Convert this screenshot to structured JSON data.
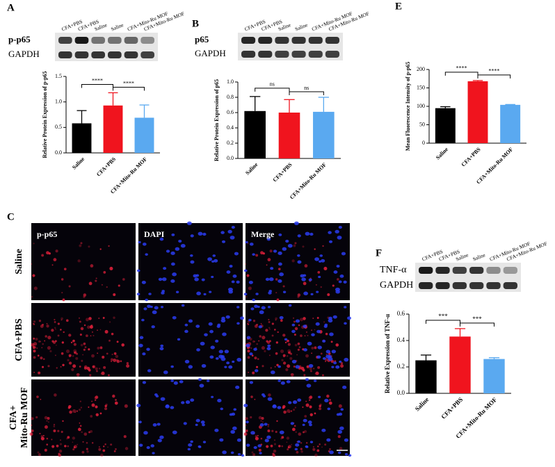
{
  "chart_data": [
    {
      "type": "bar",
      "panel": "A",
      "ylabel": "Relative Protein Expression of p-p65",
      "categories": [
        "Saline",
        "CFA+PBS",
        "CFA+Mito-Ru MOF"
      ],
      "values": [
        0.58,
        0.93,
        0.69
      ],
      "errors": [
        0.25,
        0.25,
        0.25
      ],
      "colors": [
        "#000000",
        "#f0141e",
        "#5aa9f0"
      ],
      "ylim": [
        0,
        1.5
      ],
      "yticks": [
        {
          "value": 0,
          "label": "0.0"
        },
        {
          "value": 0.5,
          "label": "0.5"
        },
        {
          "value": 1,
          "label": "1.0"
        },
        {
          "value": 1.5,
          "label": "1.5"
        }
      ],
      "annotations": [
        "****",
        "****"
      ]
    },
    {
      "type": "bar",
      "panel": "B",
      "ylabel": "Relative Protein Expression of p65",
      "categories": [
        "Saline",
        "CFA+PBS",
        "CFA+Mito-Ru MOF"
      ],
      "values": [
        0.62,
        0.6,
        0.61
      ],
      "errors": [
        0.19,
        0.17,
        0.19
      ],
      "colors": [
        "#000000",
        "#f0141e",
        "#5aa9f0"
      ],
      "ylim": [
        0,
        1
      ],
      "yticks": [
        {
          "value": 0,
          "label": "0.0"
        },
        {
          "value": 0.2,
          "label": "0.2"
        },
        {
          "value": 0.4,
          "label": "0.4"
        },
        {
          "value": 0.6,
          "label": "0.6"
        },
        {
          "value": 0.8,
          "label": "0.8"
        },
        {
          "value": 1,
          "label": "1.0"
        }
      ],
      "annotations": [
        "ns",
        "ns"
      ]
    },
    {
      "type": "bar",
      "panel": "E",
      "ylabel": "Mean Fluorescence Intensity of p-p65",
      "categories": [
        "Saline",
        "CFA+PBS",
        "CFA+Mito-Ru MOF"
      ],
      "values": [
        95,
        168,
        104
      ],
      "errors": [
        4,
        2,
        1
      ],
      "colors": [
        "#000000",
        "#f0141e",
        "#5aa9f0"
      ],
      "ylim": [
        0,
        200
      ],
      "yticks": [
        0,
        50,
        100,
        150,
        200
      ],
      "annotations": [
        "****",
        "****"
      ]
    },
    {
      "type": "bar",
      "panel": "F",
      "ylabel": "Relative Expression of TNF-α",
      "categories": [
        "Saline",
        "CFA+PBS",
        "CFA+Mito-Ru MOF"
      ],
      "values": [
        0.25,
        0.43,
        0.26
      ],
      "errors": [
        0.04,
        0.06,
        0.01
      ],
      "colors": [
        "#000000",
        "#f0141e",
        "#5aa9f0"
      ],
      "ylim": [
        0,
        0.6
      ],
      "yticks": [
        {
          "value": 0,
          "label": "0.0"
        },
        {
          "value": 0.2,
          "label": "0.2"
        },
        {
          "value": 0.4,
          "label": "0.4"
        },
        {
          "value": 0.6,
          "label": "0.6"
        }
      ],
      "annotations": [
        "***",
        "***"
      ]
    }
  ],
  "blots": [
    {
      "lanes": [
        "CFA+PBS",
        "CFA+PBS",
        "Saline",
        "Saline",
        "CFA+Mito-Ru MOF",
        "CFA+Mito-Ru MOF"
      ],
      "rows": [
        "p-p65",
        "GAPDH"
      ]
    },
    {
      "lanes": [
        "CFA+PBS",
        "CFA+PBS",
        "Saline",
        "Saline",
        "CFA+Mito-Ru MOF",
        "CFA+Mito-Ru MOF"
      ],
      "rows": [
        "p65",
        "GAPDH"
      ]
    },
    {
      "lanes": [
        "CFA+PBS",
        "CFA+PBS",
        "Saline",
        "Saline",
        "CFA+Mito-Ru MOF",
        "CFA+Mito-Ru MOF"
      ],
      "rows": [
        "TNF-α",
        "GAPDH"
      ]
    }
  ],
  "micrographs": {
    "panel": "C",
    "columns": [
      "p-p65",
      "DAPI",
      "Merge"
    ],
    "rows": [
      [
        "Saline"
      ],
      [
        "CFA+PBS"
      ],
      [
        "CFA+",
        "Mito-Ru MOF"
      ]
    ]
  }
}
